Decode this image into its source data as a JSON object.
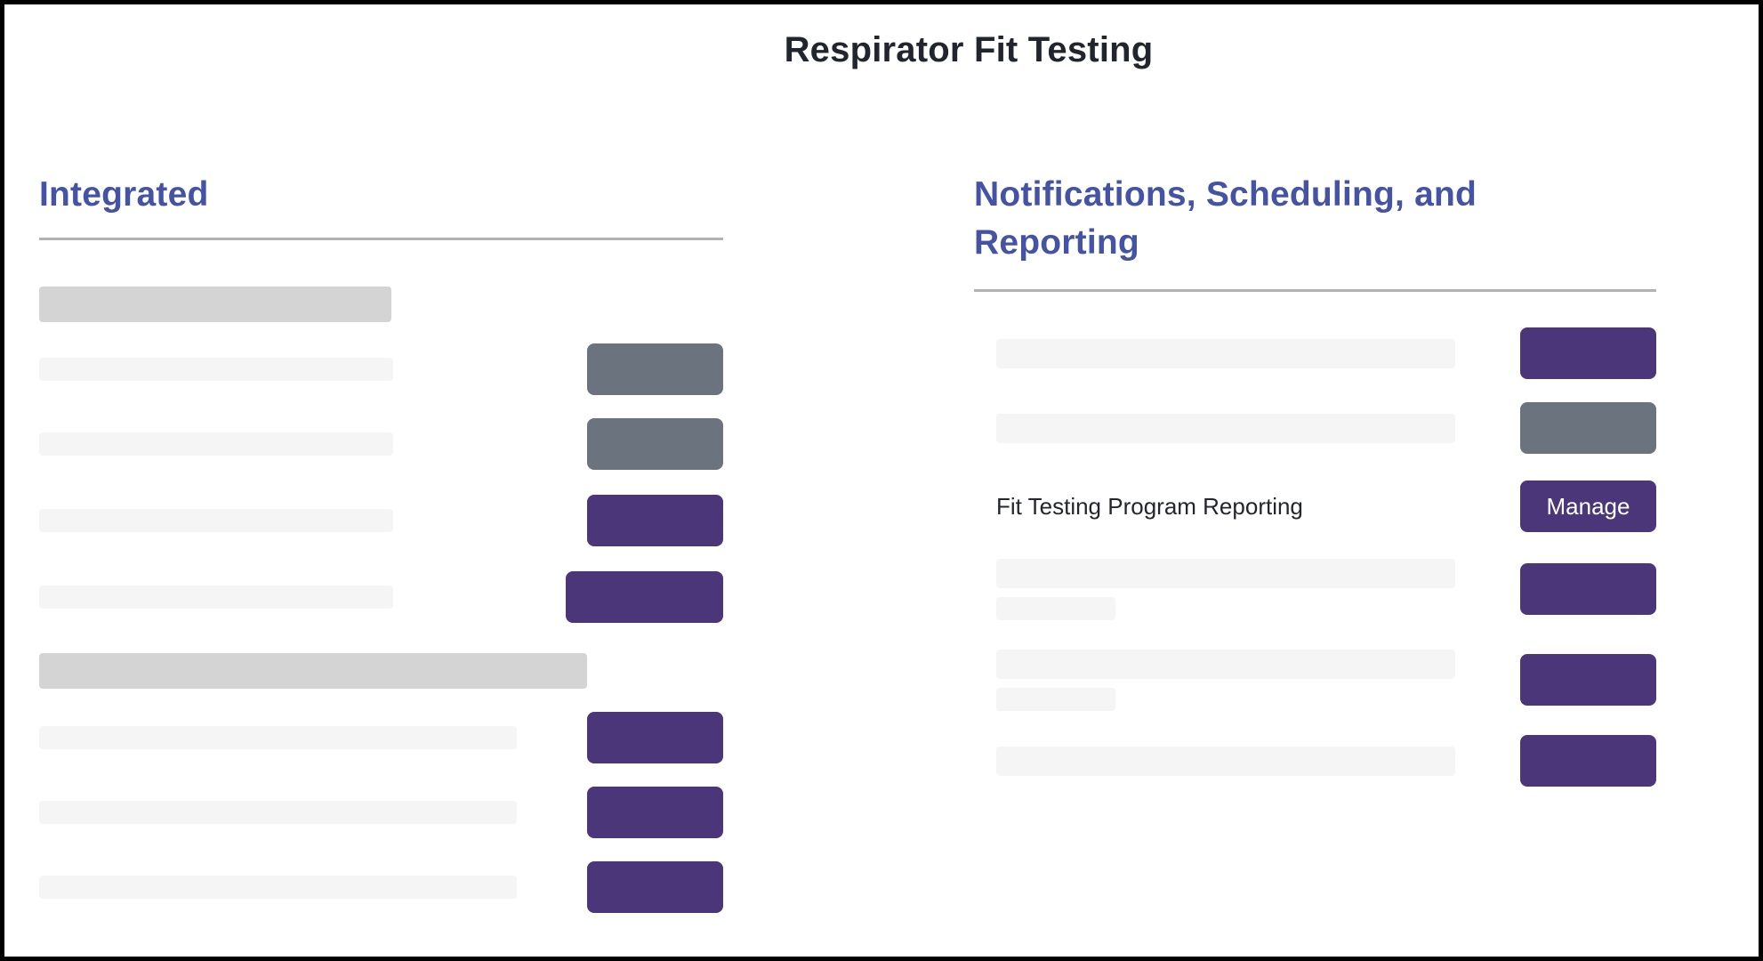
{
  "page": {
    "title": "Respirator Fit Testing"
  },
  "colors": {
    "accent_purple": "#4a3679",
    "slate_gray": "#6b737e",
    "heading_indigo": "#4553a5",
    "skeleton_light": "#f5f5f5",
    "skeleton_dark": "#d4d4d4",
    "rule_gray": "#b2b2b2",
    "title_text": "#21252d",
    "frame_border": "#000000"
  },
  "left_section": {
    "heading": "Integrated",
    "groups": [
      {
        "header_bar": "skeleton-dark",
        "rows": [
          {
            "type": "skeleton",
            "button": "gray"
          },
          {
            "type": "skeleton",
            "button": "gray"
          },
          {
            "type": "skeleton",
            "button": "purple"
          },
          {
            "type": "skeleton",
            "button": "purple-wide"
          }
        ]
      },
      {
        "header_bar": "skeleton-dark",
        "rows": [
          {
            "type": "skeleton",
            "button": "purple"
          },
          {
            "type": "skeleton",
            "button": "purple"
          },
          {
            "type": "skeleton",
            "button": "purple"
          }
        ]
      }
    ]
  },
  "right_section": {
    "heading": "Notifications, Scheduling, and Reporting",
    "rows": [
      {
        "type": "skeleton",
        "button": "purple"
      },
      {
        "type": "skeleton",
        "button": "gray"
      },
      {
        "type": "labeled",
        "label": "Fit Testing Program Reporting",
        "button": "purple",
        "button_label": "Manage"
      },
      {
        "type": "skeleton-two-line",
        "button": "purple"
      },
      {
        "type": "skeleton-two-line",
        "button": "purple"
      },
      {
        "type": "skeleton",
        "button": "purple"
      }
    ]
  }
}
